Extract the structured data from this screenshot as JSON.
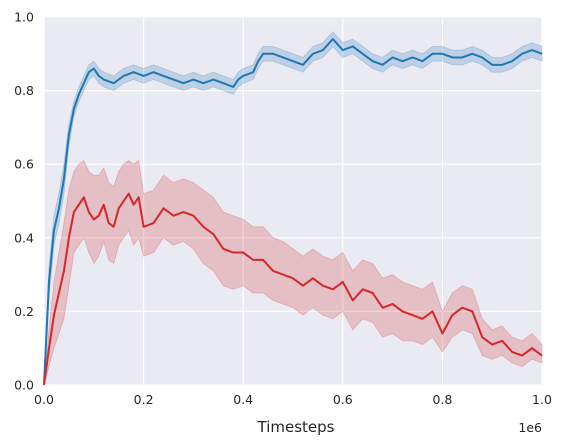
{
  "chart_data": {
    "type": "line",
    "xlabel": "Timesteps",
    "ylabel": "",
    "x_offset_label": "1e6",
    "xlim": [
      0,
      1.0
    ],
    "ylim": [
      0,
      1.0
    ],
    "x_ticks": [
      "0.0",
      "0.2",
      "0.4",
      "0.6",
      "0.8",
      "1.0"
    ],
    "y_ticks": [
      "0.0",
      "0.2",
      "0.4",
      "0.6",
      "0.8",
      "1.0"
    ],
    "grid": true,
    "background": "#eaeaf2",
    "series": [
      {
        "color": "#1f77b4",
        "band_color": "#1f77b4",
        "x": [
          0.0,
          0.01,
          0.02,
          0.03,
          0.04,
          0.05,
          0.06,
          0.07,
          0.08,
          0.09,
          0.1,
          0.11,
          0.12,
          0.14,
          0.16,
          0.18,
          0.2,
          0.22,
          0.24,
          0.26,
          0.28,
          0.3,
          0.32,
          0.34,
          0.36,
          0.38,
          0.39,
          0.4,
          0.42,
          0.43,
          0.44,
          0.46,
          0.48,
          0.5,
          0.52,
          0.54,
          0.56,
          0.58,
          0.6,
          0.62,
          0.64,
          0.66,
          0.68,
          0.7,
          0.72,
          0.74,
          0.76,
          0.78,
          0.8,
          0.82,
          0.84,
          0.86,
          0.88,
          0.9,
          0.92,
          0.94,
          0.96,
          0.98,
          1.0
        ],
        "y": [
          0.0,
          0.28,
          0.42,
          0.48,
          0.56,
          0.68,
          0.75,
          0.79,
          0.82,
          0.85,
          0.86,
          0.84,
          0.83,
          0.82,
          0.84,
          0.85,
          0.84,
          0.85,
          0.84,
          0.83,
          0.82,
          0.83,
          0.82,
          0.83,
          0.82,
          0.81,
          0.83,
          0.84,
          0.85,
          0.88,
          0.9,
          0.9,
          0.89,
          0.88,
          0.87,
          0.9,
          0.91,
          0.94,
          0.91,
          0.92,
          0.9,
          0.88,
          0.87,
          0.89,
          0.88,
          0.89,
          0.88,
          0.9,
          0.9,
          0.89,
          0.89,
          0.9,
          0.89,
          0.87,
          0.87,
          0.88,
          0.9,
          0.91,
          0.9
        ],
        "y_low": [
          0.0,
          0.24,
          0.38,
          0.44,
          0.52,
          0.65,
          0.73,
          0.77,
          0.8,
          0.83,
          0.84,
          0.82,
          0.81,
          0.8,
          0.82,
          0.83,
          0.82,
          0.83,
          0.82,
          0.81,
          0.8,
          0.81,
          0.8,
          0.81,
          0.8,
          0.79,
          0.81,
          0.82,
          0.83,
          0.86,
          0.88,
          0.88,
          0.87,
          0.86,
          0.85,
          0.88,
          0.89,
          0.92,
          0.89,
          0.9,
          0.88,
          0.86,
          0.85,
          0.87,
          0.86,
          0.87,
          0.86,
          0.88,
          0.88,
          0.87,
          0.87,
          0.88,
          0.87,
          0.85,
          0.85,
          0.86,
          0.88,
          0.89,
          0.88
        ],
        "y_high": [
          0.0,
          0.32,
          0.46,
          0.52,
          0.6,
          0.71,
          0.77,
          0.81,
          0.84,
          0.87,
          0.88,
          0.86,
          0.85,
          0.84,
          0.86,
          0.87,
          0.86,
          0.87,
          0.86,
          0.85,
          0.84,
          0.85,
          0.84,
          0.85,
          0.84,
          0.83,
          0.85,
          0.86,
          0.87,
          0.9,
          0.92,
          0.92,
          0.91,
          0.9,
          0.89,
          0.92,
          0.93,
          0.96,
          0.93,
          0.94,
          0.92,
          0.9,
          0.89,
          0.91,
          0.9,
          0.91,
          0.9,
          0.92,
          0.92,
          0.91,
          0.91,
          0.92,
          0.91,
          0.89,
          0.89,
          0.9,
          0.92,
          0.93,
          0.92
        ]
      },
      {
        "color": "#d62728",
        "band_color": "#d62728",
        "x": [
          0.0,
          0.01,
          0.02,
          0.03,
          0.04,
          0.05,
          0.06,
          0.07,
          0.08,
          0.09,
          0.1,
          0.11,
          0.12,
          0.13,
          0.14,
          0.15,
          0.16,
          0.17,
          0.18,
          0.19,
          0.2,
          0.22,
          0.24,
          0.26,
          0.28,
          0.3,
          0.32,
          0.34,
          0.36,
          0.38,
          0.4,
          0.42,
          0.44,
          0.46,
          0.48,
          0.5,
          0.52,
          0.54,
          0.56,
          0.58,
          0.6,
          0.62,
          0.64,
          0.66,
          0.68,
          0.7,
          0.72,
          0.74,
          0.76,
          0.78,
          0.8,
          0.82,
          0.84,
          0.86,
          0.88,
          0.9,
          0.92,
          0.94,
          0.96,
          0.98,
          1.0
        ],
        "y": [
          0.0,
          0.1,
          0.19,
          0.25,
          0.31,
          0.4,
          0.47,
          0.49,
          0.51,
          0.47,
          0.45,
          0.46,
          0.49,
          0.44,
          0.43,
          0.48,
          0.5,
          0.52,
          0.49,
          0.51,
          0.43,
          0.44,
          0.48,
          0.46,
          0.47,
          0.46,
          0.43,
          0.41,
          0.37,
          0.36,
          0.36,
          0.34,
          0.34,
          0.31,
          0.3,
          0.29,
          0.27,
          0.29,
          0.27,
          0.26,
          0.28,
          0.23,
          0.26,
          0.25,
          0.21,
          0.22,
          0.2,
          0.19,
          0.18,
          0.2,
          0.14,
          0.19,
          0.21,
          0.2,
          0.13,
          0.11,
          0.12,
          0.09,
          0.08,
          0.1,
          0.08
        ],
        "y_low": [
          0.0,
          0.05,
          0.1,
          0.14,
          0.18,
          0.27,
          0.36,
          0.38,
          0.4,
          0.36,
          0.33,
          0.35,
          0.39,
          0.34,
          0.33,
          0.38,
          0.4,
          0.42,
          0.38,
          0.4,
          0.35,
          0.36,
          0.4,
          0.38,
          0.39,
          0.37,
          0.33,
          0.31,
          0.27,
          0.26,
          0.27,
          0.25,
          0.25,
          0.23,
          0.22,
          0.21,
          0.19,
          0.21,
          0.19,
          0.18,
          0.2,
          0.15,
          0.18,
          0.17,
          0.13,
          0.14,
          0.12,
          0.12,
          0.11,
          0.13,
          0.09,
          0.13,
          0.15,
          0.14,
          0.08,
          0.07,
          0.08,
          0.06,
          0.05,
          0.07,
          0.06
        ],
        "y_high": [
          0.0,
          0.15,
          0.28,
          0.36,
          0.44,
          0.53,
          0.58,
          0.6,
          0.61,
          0.58,
          0.57,
          0.57,
          0.59,
          0.55,
          0.54,
          0.58,
          0.6,
          0.61,
          0.6,
          0.61,
          0.52,
          0.53,
          0.57,
          0.55,
          0.56,
          0.55,
          0.53,
          0.51,
          0.47,
          0.46,
          0.45,
          0.43,
          0.43,
          0.4,
          0.39,
          0.37,
          0.35,
          0.37,
          0.35,
          0.34,
          0.36,
          0.31,
          0.34,
          0.33,
          0.29,
          0.3,
          0.28,
          0.27,
          0.26,
          0.28,
          0.2,
          0.25,
          0.27,
          0.26,
          0.18,
          0.15,
          0.16,
          0.13,
          0.12,
          0.14,
          0.11
        ]
      }
    ]
  }
}
